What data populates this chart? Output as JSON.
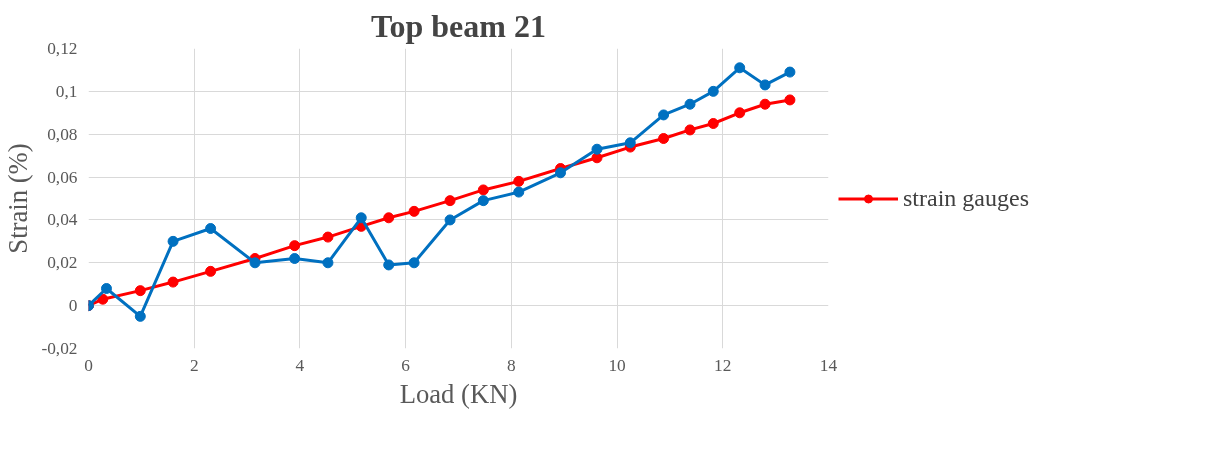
{
  "chart_data": {
    "type": "line",
    "title": "Top beam 21",
    "xlabel": "Load (KN)",
    "ylabel": "Strain (%)",
    "xlim": [
      0,
      14
    ],
    "xticks": [
      0,
      2,
      4,
      6,
      8,
      10,
      12,
      14
    ],
    "ylim": [
      -0.02,
      0.12
    ],
    "yticks": [
      {
        "value": -0.02,
        "label": "-0,02"
      },
      0,
      {
        "value": 0.02,
        "label": "0,02"
      },
      {
        "value": 0.04,
        "label": "0,04"
      },
      {
        "value": 0.06,
        "label": "0,06"
      },
      {
        "value": 0.08,
        "label": "0,08"
      },
      {
        "value": 0.1,
        "label": "0,1"
      },
      {
        "value": 0.12,
        "label": "0,12"
      }
    ],
    "grid": true,
    "legend": "right",
    "marker": "circle",
    "line_style": "solid",
    "series": [
      {
        "name": "strain gauges",
        "color": "#ff0000",
        "x": [
          0,
          0.27,
          0.98,
          1.6,
          2.31,
          3.15,
          3.9,
          4.53,
          5.16,
          5.68,
          6.16,
          6.84,
          7.47,
          8.14,
          8.93,
          9.62,
          10.25,
          10.88,
          11.38,
          11.82,
          12.32,
          12.8,
          13.27
        ],
        "values": [
          0,
          0.003,
          0.007,
          0.011,
          0.016,
          0.022,
          0.028,
          0.032,
          0.037,
          0.041,
          0.044,
          0.049,
          0.054,
          0.058,
          0.064,
          0.069,
          0.074,
          0.078,
          0.082,
          0.085,
          0.09,
          0.094,
          0.096
        ]
      },
      {
        "color": "#0070c0",
        "x": [
          0,
          0.34,
          0.98,
          1.6,
          2.31,
          3.15,
          3.9,
          4.53,
          5.16,
          5.68,
          6.16,
          6.84,
          7.47,
          8.14,
          8.93,
          9.62,
          10.25,
          10.88,
          11.38,
          11.82,
          12.32,
          12.8,
          13.27
        ],
        "values": [
          0,
          0.008,
          -0.005,
          0.03,
          0.036,
          0.02,
          0.022,
          0.02,
          0.041,
          0.019,
          0.02,
          0.04,
          0.049,
          0.053,
          0.062,
          0.073,
          0.076,
          0.089,
          0.094,
          0.1,
          0.111,
          0.103,
          0.109
        ]
      }
    ]
  }
}
